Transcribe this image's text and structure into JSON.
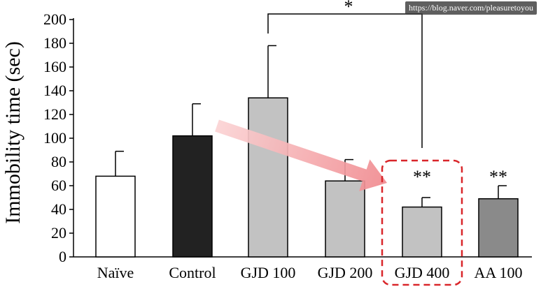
{
  "watermark": "https://blog.naver.com/pleasuretoyou",
  "chart_data": {
    "type": "bar",
    "ylabel": "Immobility time (sec)",
    "ylim": [
      0,
      200
    ],
    "yticks": [
      0,
      20,
      40,
      60,
      80,
      100,
      120,
      140,
      160,
      180,
      200
    ],
    "categories": [
      "Naïve",
      "Control",
      "GJD 100",
      "GJD 200",
      "GJD 400",
      "AA 100"
    ],
    "values": [
      68,
      102,
      134,
      64,
      42,
      49
    ],
    "errors": [
      21,
      27,
      44,
      18,
      8,
      11
    ],
    "bar_colors": [
      "#ffffff",
      "#222222",
      "#c2c2c2",
      "#c2c2c2",
      "#c2c2c2",
      "#8a8a8a"
    ],
    "significance": [
      {
        "category": "GJD 400",
        "label": "**"
      },
      {
        "category": "AA 100",
        "label": "**"
      }
    ],
    "comparison_bracket": {
      "from": "GJD 100",
      "to": "GJD 400",
      "label": "*"
    },
    "highlight": {
      "category": "GJD 400",
      "color": "#d9262a"
    },
    "arrow": {
      "from": "Control",
      "to": "GJD 400",
      "color": "#f4a6a8"
    }
  }
}
